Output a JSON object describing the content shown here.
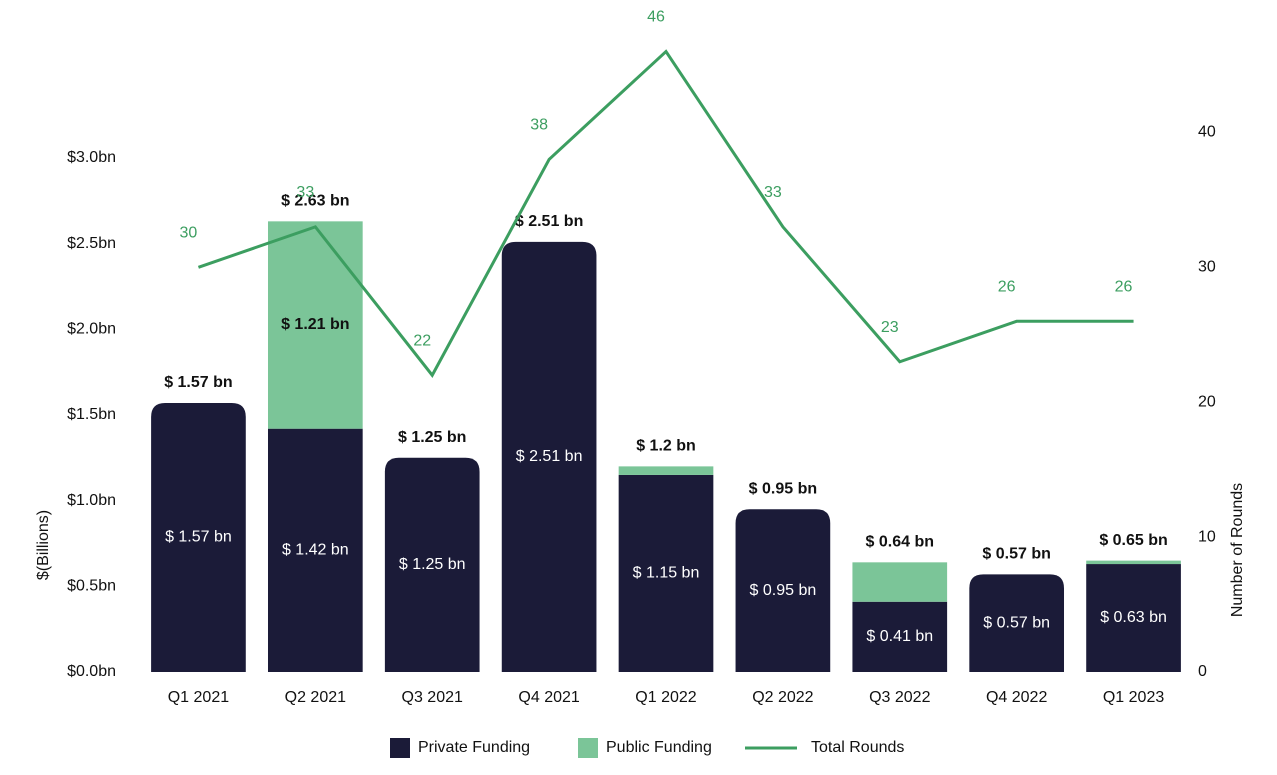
{
  "chart_data": {
    "type": "bar",
    "categories": [
      "Q1 2021",
      "Q2 2021",
      "Q3 2021",
      "Q4 2021",
      "Q1 2022",
      "Q2 2022",
      "Q3 2022",
      "Q4 2022",
      "Q1 2023"
    ],
    "series": [
      {
        "name": "Private Funding",
        "color": "#1b1b38",
        "values": [
          1.57,
          1.42,
          1.25,
          2.51,
          1.15,
          0.95,
          0.41,
          0.57,
          0.63
        ],
        "value_labels": [
          "$ 1.57  bn",
          "$ 1.42 bn",
          "$ 1.25 bn",
          "$ 2.51 bn",
          "$ 1.15 bn",
          "$ 0.95 bn",
          "$ 0.41 bn",
          "$ 0.57 bn",
          "$ 0.63 bn"
        ]
      },
      {
        "name": "Public Funding",
        "color": "#7bc598",
        "values": [
          0,
          1.21,
          0,
          0,
          0.05,
          0,
          0.23,
          0,
          0.02
        ],
        "value_labels": [
          null,
          "$ 1.21 bn",
          null,
          null,
          null,
          null,
          null,
          null,
          null
        ]
      },
      {
        "name": "Total Rounds",
        "type": "line",
        "axis": "y2",
        "color": "#3c9e60",
        "values": [
          30,
          33,
          22,
          38,
          46,
          33,
          23,
          26,
          26
        ]
      }
    ],
    "total_labels": [
      "$ 1.57 bn",
      "$ 2.63 bn",
      "$ 1.25 bn",
      "$ 2.51 bn",
      "$ 1.2 bn",
      "$ 0.95 bn",
      "$ 0.64 bn",
      "$ 0.57 bn",
      "$ 0.65 bn"
    ],
    "y_label": "$(Billions)",
    "y2_label": "Number of Rounds",
    "ylim": [
      0,
      3.7
    ],
    "yticks": [
      {
        "value": 0,
        "label": "$0.0bn"
      },
      {
        "value": 0.5,
        "label": "$0.5bn"
      },
      {
        "value": 1.0,
        "label": "$1.0bn"
      },
      {
        "value": 1.5,
        "label": "$1.5bn"
      },
      {
        "value": 2.0,
        "label": "$2.0bn"
      },
      {
        "value": 2.5,
        "label": "$2.5bn"
      },
      {
        "value": 3.0,
        "label": "$3.0bn"
      }
    ],
    "y2lim": [
      0,
      47
    ],
    "y2ticks": [
      0,
      10,
      20,
      30,
      40
    ],
    "grid": false,
    "legend": "bottom"
  }
}
